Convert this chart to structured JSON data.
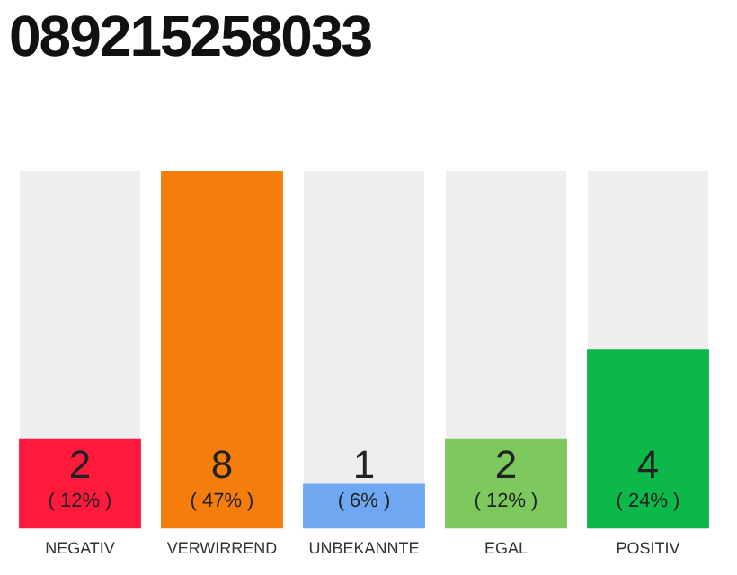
{
  "chart_data": {
    "type": "bar",
    "title": "089215258033",
    "categories": [
      "NEGATIV",
      "VERWIRREND",
      "UNBEKANNTE",
      "EGAL",
      "POSITIV"
    ],
    "values": [
      2,
      8,
      1,
      2,
      4
    ],
    "colors": [
      "#ff1a3c",
      "#f47d0c",
      "#6fa8f0",
      "#7dc95e",
      "#0db84a"
    ],
    "data_labels": true,
    "annotations": [
      {
        "text": "( 12% )",
        "x": "NEGATIV",
        "y": 0
      },
      {
        "text": "( 47% )",
        "x": "VERWIRREND",
        "y": 0
      },
      {
        "text": "( 6% )",
        "x": "UNBEKANNTE",
        "y": 0
      },
      {
        "text": "( 12% )",
        "x": "EGAL",
        "y": 0
      },
      {
        "text": "( 24% )",
        "x": "POSITIV",
        "y": 0
      }
    ],
    "tick_labels": "x",
    "grid": false,
    "legend": false
  }
}
